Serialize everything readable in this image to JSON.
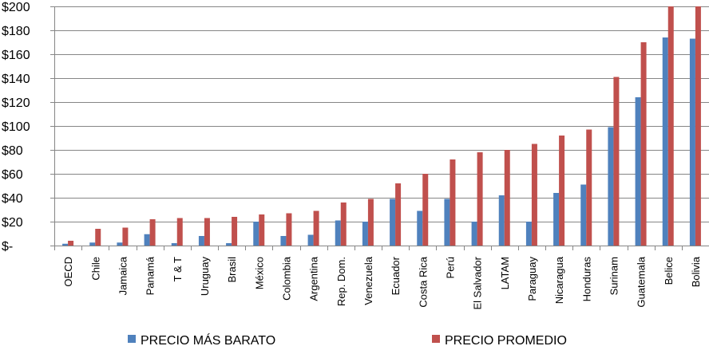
{
  "chart_data": {
    "type": "bar",
    "categories": [
      "OECD",
      "Chile",
      "Jamaica",
      "Panamá",
      "T & T",
      "Uruguay",
      "Brasil",
      "México",
      "Colombia",
      "Argentina",
      "Rep. Dom.",
      "Venezuela",
      "Ecuador",
      "Costa Rica",
      "Perú",
      "El Salvador",
      "LATAM",
      "Paraguay",
      "Nicaragua",
      "Honduras",
      "Surinam",
      "Guatemala",
      "Belice",
      "Bolivia"
    ],
    "series": [
      {
        "name": "PRECIO MÁS BARATO",
        "color": "#4f81bd",
        "values": [
          1.5,
          2.5,
          2.5,
          9.5,
          2,
          8,
          2,
          20,
          8,
          9,
          21,
          20,
          39,
          29,
          39,
          20,
          42,
          20,
          44,
          51,
          99,
          124,
          174,
          173
        ]
      },
      {
        "name": "PRECIO PROMEDIO",
        "color": "#c0504d",
        "values": [
          4,
          14,
          15,
          22,
          23,
          23,
          24,
          26,
          27,
          29,
          36,
          39,
          52,
          60,
          72,
          78,
          80,
          85,
          92,
          97,
          141,
          170,
          200,
          200
        ]
      }
    ],
    "ylim": [
      0,
      200
    ],
    "yticks": [
      0,
      20,
      40,
      60,
      80,
      100,
      120,
      140,
      160,
      180,
      200
    ],
    "ytick_labels": [
      "$-",
      "$20",
      "$40",
      "$60",
      "$80",
      "$100",
      "$120",
      "$140",
      "$160",
      "$180",
      "$200"
    ],
    "grid": true,
    "legend_position": "bottom",
    "title": "",
    "xlabel": "",
    "ylabel": ""
  },
  "colors": {
    "grid": "#868686",
    "axis": "#868686"
  }
}
